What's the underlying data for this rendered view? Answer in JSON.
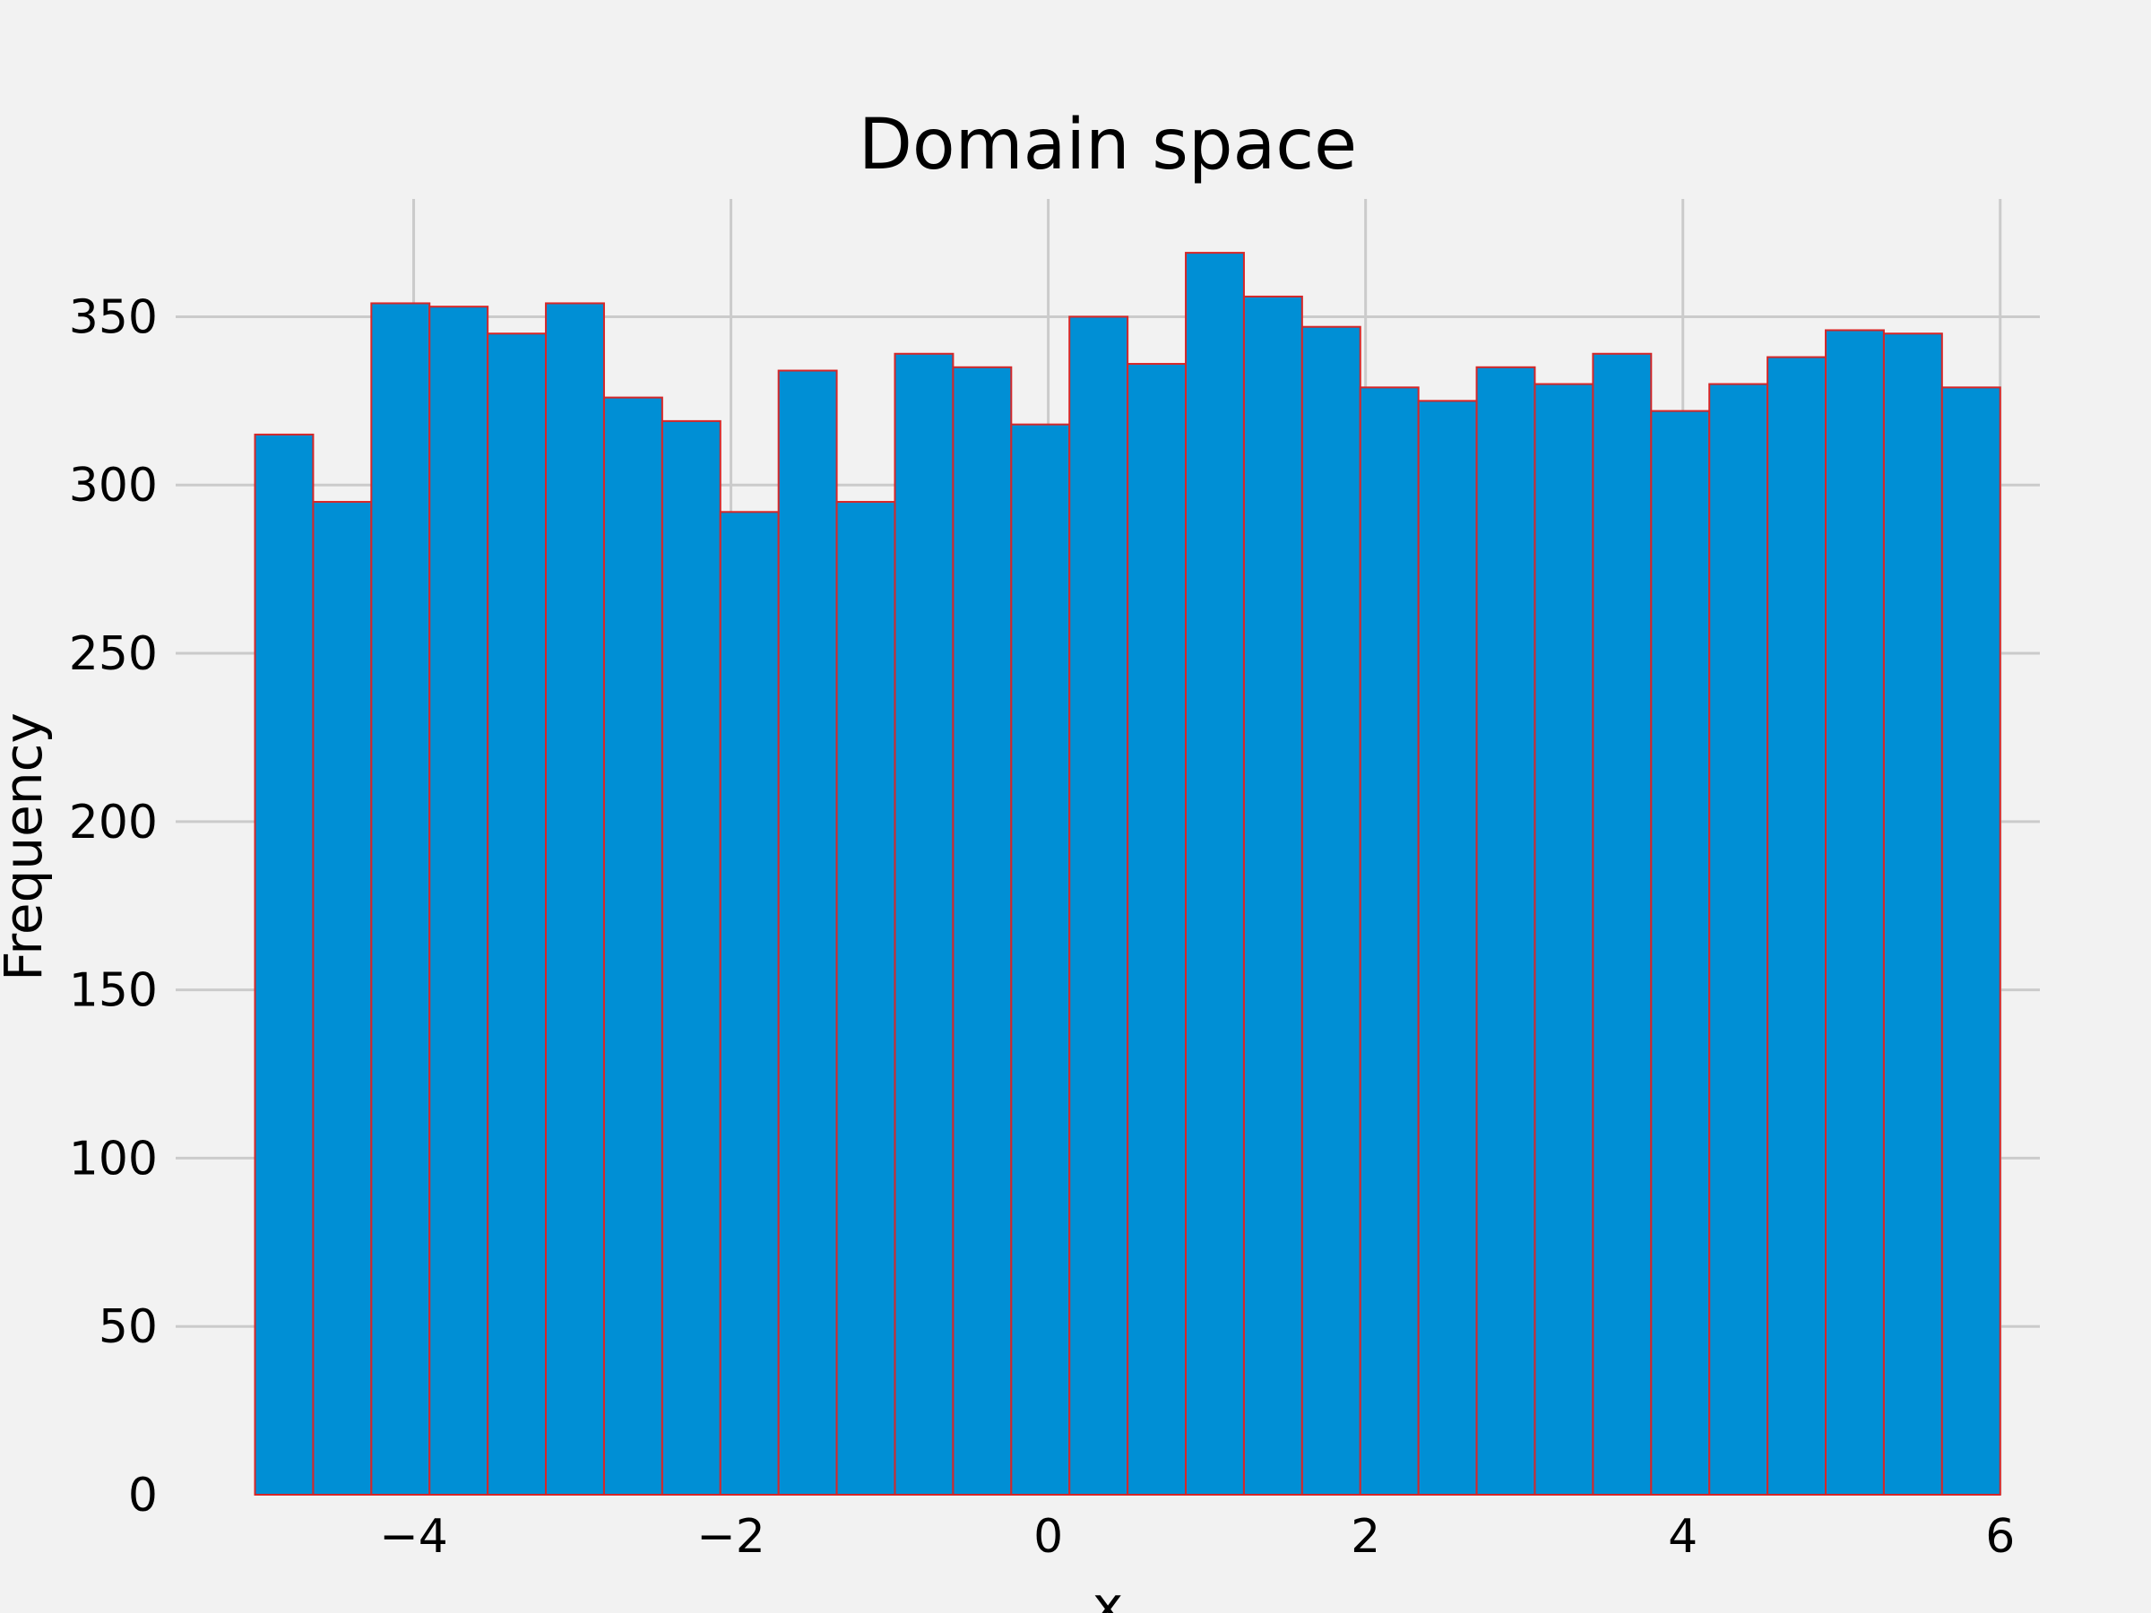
{
  "chart_data": {
    "type": "bar",
    "title": "Domain space",
    "xlabel": "x",
    "ylabel": "Frequency",
    "bin_range": [
      -5,
      6
    ],
    "bin_count": 30,
    "values": [
      315,
      295,
      354,
      353,
      345,
      354,
      326,
      319,
      292,
      334,
      295,
      339,
      335,
      318,
      350,
      336,
      369,
      356,
      347,
      329,
      325,
      335,
      330,
      339,
      322,
      330,
      338,
      346,
      345,
      329
    ],
    "xlim": [
      -5.5,
      6.25
    ],
    "ylim": [
      0,
      385
    ],
    "x_ticks": [
      -4,
      -2,
      0,
      2,
      4,
      6
    ],
    "x_tick_labels": [
      "−4",
      "−2",
      "0",
      "2",
      "4",
      "6"
    ],
    "y_ticks": [
      0,
      50,
      100,
      150,
      200,
      250,
      300,
      350
    ],
    "y_tick_labels": [
      "0",
      "50",
      "100",
      "150",
      "200",
      "250",
      "300",
      "350"
    ],
    "grid": true,
    "colors": {
      "bar_fill": "#008fd5",
      "bar_edge": "#d62728",
      "grid": "#cbcbcb",
      "background": "#f2f2f2"
    }
  }
}
